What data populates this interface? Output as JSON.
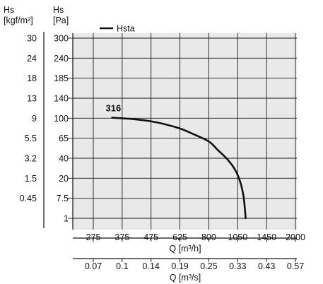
{
  "chart_data": {
    "type": "line",
    "left_axis_units": [
      "Hs",
      "[kgf/m²]"
    ],
    "right_axis_units": [
      "Hs",
      "[Pa]"
    ],
    "pa_ticks": [
      "300",
      "240",
      "185",
      "140",
      "100",
      "65",
      "40",
      "20",
      "7.5",
      "1"
    ],
    "kgf_ticks": [
      "30",
      "24",
      "18",
      "13",
      "9",
      "5.5",
      "3.2",
      "1.5",
      "0.45",
      ""
    ],
    "x_m3h_ticks": [
      "275",
      "375",
      "475",
      "625",
      "800",
      "1050",
      "1450",
      "2000"
    ],
    "x_m3h_label": "Q [m³/h]",
    "x_m3s_ticks": [
      "0.07",
      "0.1",
      "0.14",
      "0.19",
      "0.25",
      "0.33",
      "0.43",
      "0.57"
    ],
    "x_m3s_label": "Q [m³/s]",
    "legend": "Hsta",
    "series": [
      {
        "name": "Hsta",
        "curve_label": "316",
        "points": [
          {
            "q": 340,
            "hs": 101
          },
          {
            "q": 400,
            "hs": 99
          },
          {
            "q": 470,
            "hs": 95
          },
          {
            "q": 540,
            "hs": 90
          },
          {
            "q": 625,
            "hs": 82
          },
          {
            "q": 700,
            "hs": 73
          },
          {
            "q": 800,
            "hs": 61
          },
          {
            "q": 880,
            "hs": 50
          },
          {
            "q": 960,
            "hs": 39
          },
          {
            "q": 1030,
            "hs": 28
          },
          {
            "q": 1090,
            "hs": 17
          },
          {
            "q": 1130,
            "hs": 9
          },
          {
            "q": 1150,
            "hs": 4
          },
          {
            "q": 1160,
            "hs": 1
          }
        ]
      }
    ],
    "grid": true
  }
}
